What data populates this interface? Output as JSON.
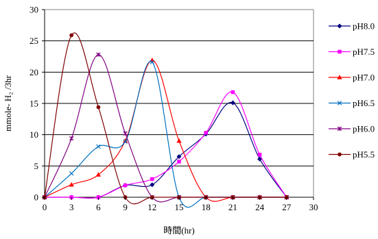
{
  "chart_data": {
    "type": "line",
    "title": "",
    "xlabel": "時間(hr)",
    "ylabel": "mmole- H₂ /3hr",
    "xlim": [
      0,
      30
    ],
    "ylim": [
      0,
      30
    ],
    "xticks": [
      0,
      3,
      6,
      9,
      12,
      15,
      18,
      21,
      24,
      27,
      30
    ],
    "yticks": [
      0,
      5,
      10,
      15,
      20,
      25,
      30
    ],
    "grid": "horizontal",
    "legend_position": "right",
    "smooth": true,
    "x": [
      0,
      3,
      6,
      9,
      12,
      15,
      18,
      21,
      24,
      27
    ],
    "series": [
      {
        "name": "pH8.0",
        "color": "#000080",
        "marker": "diamond",
        "values": [
          0,
          0,
          0,
          1.9,
          2.0,
          6.5,
          10.1,
          15.1,
          6.1,
          0
        ]
      },
      {
        "name": "pH7.5",
        "color": "#ff00ff",
        "marker": "square",
        "values": [
          0,
          0,
          0,
          1.9,
          2.9,
          5.7,
          10.3,
          16.8,
          6.8,
          0
        ]
      },
      {
        "name": "pH7.0",
        "color": "#ff0000",
        "marker": "triangle",
        "values": [
          0,
          2.0,
          3.6,
          9.0,
          21.9,
          9.0,
          0,
          0,
          0,
          0
        ]
      },
      {
        "name": "pH6.5",
        "color": "#0070c0",
        "marker": "x",
        "values": [
          0,
          3.8,
          8.1,
          8.9,
          21.6,
          0,
          0,
          0,
          0,
          0
        ]
      },
      {
        "name": "pH6.0",
        "color": "#800080",
        "marker": "star",
        "values": [
          0,
          9.4,
          22.8,
          10.2,
          0,
          0,
          0,
          0,
          0,
          0
        ]
      },
      {
        "name": "pH5.5",
        "color": "#800000",
        "marker": "circle",
        "values": [
          0,
          25.9,
          14.4,
          0,
          0,
          0,
          0,
          0,
          0,
          0
        ]
      }
    ]
  }
}
